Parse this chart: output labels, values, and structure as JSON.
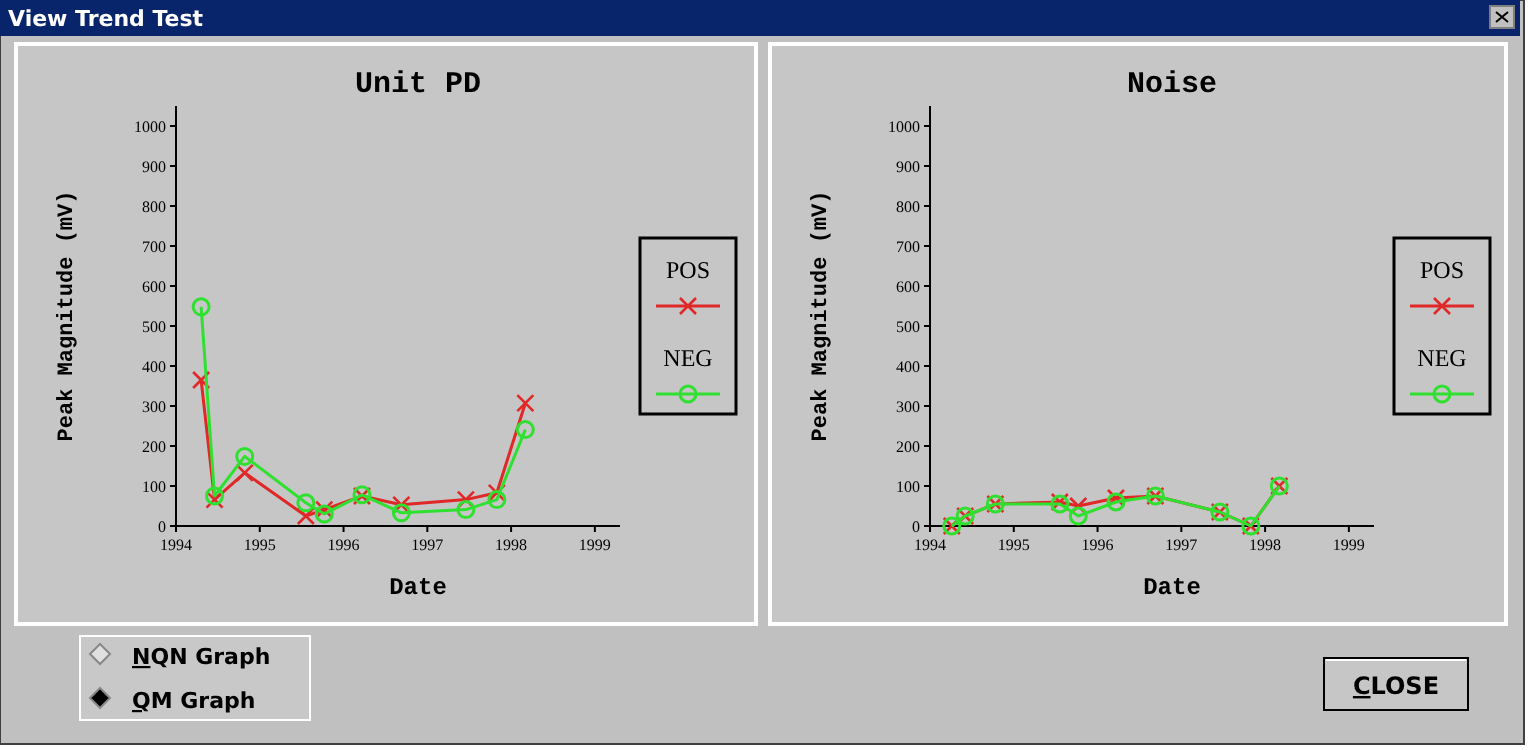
{
  "chart_data": [
    {
      "type": "line",
      "title": "Unit PD",
      "xlabel": "Date",
      "ylabel": "Peak Magnitude (mV)",
      "xlim": [
        1994,
        1999.3
      ],
      "xticks": [
        1994,
        1995,
        1996,
        1997,
        1998,
        1999
      ],
      "ylim": [
        0,
        1050
      ],
      "yticks": [
        0,
        100,
        200,
        300,
        400,
        500,
        600,
        700,
        800,
        900,
        1000
      ],
      "legend": "right",
      "series": [
        {
          "name": "POS",
          "color": "#e02828",
          "marker": "cross",
          "x": [
            1994.3,
            1994.46,
            1994.82,
            1995.55,
            1995.77,
            1996.22,
            1996.69,
            1997.46,
            1997.83,
            1998.17
          ],
          "values": [
            365,
            66,
            133,
            25,
            41,
            75,
            53,
            66,
            83,
            307
          ]
        },
        {
          "name": "NEG",
          "color": "#30e030",
          "marker": "circle",
          "x": [
            1994.3,
            1994.46,
            1994.82,
            1995.55,
            1995.77,
            1996.22,
            1996.69,
            1997.46,
            1997.83,
            1998.17
          ],
          "values": [
            548,
            75,
            174,
            58,
            30,
            78,
            33,
            41,
            66,
            241
          ]
        }
      ]
    },
    {
      "type": "line",
      "title": "Noise",
      "xlabel": "Date",
      "ylabel": "Peak Magnitude (mV)",
      "xlim": [
        1994,
        1999.3
      ],
      "xticks": [
        1994,
        1995,
        1996,
        1997,
        1998,
        1999
      ],
      "ylim": [
        0,
        1050
      ],
      "yticks": [
        0,
        100,
        200,
        300,
        400,
        500,
        600,
        700,
        800,
        900,
        1000
      ],
      "legend": "right",
      "series": [
        {
          "name": "POS",
          "color": "#e02828",
          "marker": "cross",
          "x": [
            1994.26,
            1994.42,
            1994.78,
            1995.55,
            1995.77,
            1996.22,
            1996.69,
            1997.46,
            1997.83,
            1998.17
          ],
          "values": [
            0,
            25,
            55,
            60,
            50,
            70,
            75,
            35,
            0,
            100
          ]
        },
        {
          "name": "NEG",
          "color": "#30e030",
          "marker": "circle",
          "x": [
            1994.26,
            1994.42,
            1994.78,
            1995.55,
            1995.77,
            1996.22,
            1996.69,
            1997.46,
            1997.83,
            1998.17
          ],
          "values": [
            0,
            25,
            55,
            55,
            25,
            60,
            75,
            35,
            0,
            100
          ]
        }
      ]
    },
    {
      "type": "other",
      "title": "View Trend Test",
      "annotations": [
        "NQN Graph",
        "QM Graph",
        "CLOSE"
      ]
    }
  ]
}
